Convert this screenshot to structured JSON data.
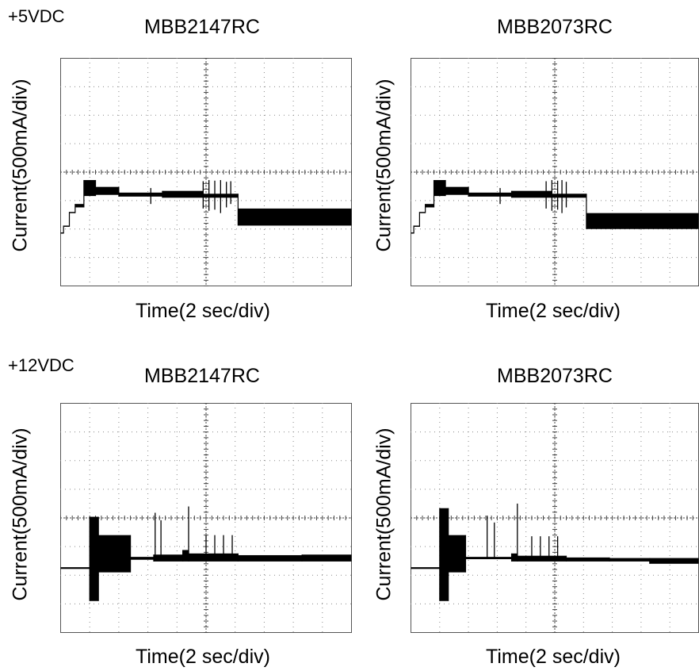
{
  "groups": [
    {
      "label": "+5VDC"
    },
    {
      "label": "+12VDC"
    }
  ],
  "chart_data": [
    {
      "type": "line",
      "group": "+5VDC",
      "title": "MBB2147RC",
      "xlabel": "Time(2 sec/div)",
      "ylabel": "Current(500mA/div)",
      "xlim": [
        0,
        20
      ],
      "ylim": [
        -2000,
        2000
      ],
      "grid": true,
      "segments": [
        {
          "x": [
            0,
            0.2
          ],
          "lo": -1080,
          "hi": -1060
        },
        {
          "x": [
            0.2,
            0.6
          ],
          "lo": -960,
          "hi": -940
        },
        {
          "x": [
            0.6,
            1.0
          ],
          "lo": -720,
          "hi": -700
        },
        {
          "x": [
            1.0,
            1.6
          ],
          "lo": -620,
          "hi": -560
        },
        {
          "x": [
            1.6,
            2.4
          ],
          "lo": -420,
          "hi": -140
        },
        {
          "x": [
            2.4,
            4.0
          ],
          "lo": -400,
          "hi": -260
        },
        {
          "x": [
            4.0,
            7.0
          ],
          "lo": -430,
          "hi": -360
        },
        {
          "x": [
            7.0,
            9.8
          ],
          "lo": -450,
          "hi": -330
        },
        {
          "x": [
            9.8,
            12.2
          ],
          "lo": -450,
          "hi": -380
        },
        {
          "x": [
            12.2,
            20
          ],
          "lo": -940,
          "hi": -640
        }
      ],
      "spikes": [
        {
          "x": 6.2,
          "lo": -560,
          "hi": -280
        },
        {
          "x": 9.8,
          "lo": -640,
          "hi": -160
        },
        {
          "x": 10.2,
          "lo": -680,
          "hi": -140
        },
        {
          "x": 10.6,
          "lo": -660,
          "hi": -150
        },
        {
          "x": 11.0,
          "lo": -720,
          "hi": -140
        },
        {
          "x": 11.4,
          "lo": -620,
          "hi": -170
        },
        {
          "x": 11.7,
          "lo": -560,
          "hi": -160
        }
      ]
    },
    {
      "type": "line",
      "group": "+5VDC",
      "title": "MBB2073RC",
      "xlabel": "Time(2 sec/div)",
      "ylabel": "Current(500mA/div)",
      "xlim": [
        0,
        20
      ],
      "ylim": [
        -2000,
        2000
      ],
      "grid": true,
      "segments": [
        {
          "x": [
            0,
            0.2
          ],
          "lo": -1080,
          "hi": -1060
        },
        {
          "x": [
            0.2,
            0.6
          ],
          "lo": -960,
          "hi": -940
        },
        {
          "x": [
            0.6,
            1.0
          ],
          "lo": -720,
          "hi": -700
        },
        {
          "x": [
            1.0,
            1.6
          ],
          "lo": -620,
          "hi": -560
        },
        {
          "x": [
            1.6,
            2.4
          ],
          "lo": -420,
          "hi": -140
        },
        {
          "x": [
            2.4,
            4.0
          ],
          "lo": -400,
          "hi": -260
        },
        {
          "x": [
            4.0,
            7.0
          ],
          "lo": -430,
          "hi": -360
        },
        {
          "x": [
            7.0,
            9.8
          ],
          "lo": -450,
          "hi": -330
        },
        {
          "x": [
            9.8,
            12.2
          ],
          "lo": -450,
          "hi": -380
        },
        {
          "x": [
            12.2,
            20
          ],
          "lo": -1000,
          "hi": -720
        }
      ],
      "spikes": [
        {
          "x": 6.2,
          "lo": -560,
          "hi": -280
        },
        {
          "x": 9.4,
          "lo": -640,
          "hi": -160
        },
        {
          "x": 9.8,
          "lo": -680,
          "hi": -140
        },
        {
          "x": 10.2,
          "lo": -660,
          "hi": -150
        },
        {
          "x": 10.5,
          "lo": -720,
          "hi": -140
        },
        {
          "x": 10.8,
          "lo": -620,
          "hi": -170
        }
      ]
    },
    {
      "type": "line",
      "group": "+12VDC",
      "title": "MBB2147RC",
      "xlabel": "Time(2 sec/div)",
      "ylabel": "Current(500mA/div)",
      "xlim": [
        0,
        20
      ],
      "ylim": [
        -2000,
        2000
      ],
      "grid": true,
      "segments": [
        {
          "x": [
            0,
            2.0
          ],
          "lo": -890,
          "hi": -860
        },
        {
          "x": [
            2.0,
            2.6
          ],
          "lo": -1450,
          "hi": 20
        },
        {
          "x": [
            2.6,
            4.8
          ],
          "lo": -950,
          "hi": -300
        },
        {
          "x": [
            4.8,
            6.4
          ],
          "lo": -730,
          "hi": -680
        },
        {
          "x": [
            6.4,
            8.4
          ],
          "lo": -760,
          "hi": -640
        },
        {
          "x": [
            8.4,
            8.8
          ],
          "lo": -760,
          "hi": -560
        },
        {
          "x": [
            8.8,
            12.2
          ],
          "lo": -760,
          "hi": -620
        },
        {
          "x": [
            12.2,
            16.6
          ],
          "lo": -760,
          "hi": -650
        },
        {
          "x": [
            16.6,
            20
          ],
          "lo": -760,
          "hi": -640
        }
      ],
      "spikes": [
        {
          "x": 6.5,
          "lo": -720,
          "hi": 90
        },
        {
          "x": 6.9,
          "lo": -720,
          "hi": -40
        },
        {
          "x": 8.8,
          "lo": -720,
          "hi": 200
        },
        {
          "x": 10.0,
          "lo": -720,
          "hi": -300
        },
        {
          "x": 10.6,
          "lo": -720,
          "hi": -300
        },
        {
          "x": 11.2,
          "lo": -720,
          "hi": -300
        },
        {
          "x": 11.8,
          "lo": -720,
          "hi": -300
        }
      ]
    },
    {
      "type": "line",
      "group": "+12VDC",
      "title": "MBB2073RC",
      "xlabel": "Time(2 sec/div)",
      "ylabel": "Current(500mA/div)",
      "xlim": [
        0,
        20
      ],
      "ylim": [
        -2000,
        2000
      ],
      "grid": true,
      "segments": [
        {
          "x": [
            0,
            2.0
          ],
          "lo": -890,
          "hi": -860
        },
        {
          "x": [
            2.0,
            2.6
          ],
          "lo": -1450,
          "hi": 170
        },
        {
          "x": [
            2.6,
            3.8
          ],
          "lo": -950,
          "hi": -300
        },
        {
          "x": [
            3.8,
            7.0
          ],
          "lo": -720,
          "hi": -680
        },
        {
          "x": [
            7.0,
            7.4
          ],
          "lo": -760,
          "hi": -620
        },
        {
          "x": [
            7.4,
            10.8
          ],
          "lo": -760,
          "hi": -660
        },
        {
          "x": [
            10.8,
            13.8
          ],
          "lo": -760,
          "hi": -690
        },
        {
          "x": [
            13.8,
            16.6
          ],
          "lo": -760,
          "hi": -700
        },
        {
          "x": [
            16.6,
            20
          ],
          "lo": -800,
          "hi": -700
        }
      ],
      "spikes": [
        {
          "x": 5.3,
          "lo": -720,
          "hi": 40
        },
        {
          "x": 5.8,
          "lo": -720,
          "hi": -80
        },
        {
          "x": 7.4,
          "lo": -720,
          "hi": 250
        },
        {
          "x": 8.4,
          "lo": -720,
          "hi": -320
        },
        {
          "x": 9.0,
          "lo": -720,
          "hi": -320
        },
        {
          "x": 9.6,
          "lo": -720,
          "hi": -320
        },
        {
          "x": 10.2,
          "lo": -720,
          "hi": -320
        }
      ]
    }
  ]
}
